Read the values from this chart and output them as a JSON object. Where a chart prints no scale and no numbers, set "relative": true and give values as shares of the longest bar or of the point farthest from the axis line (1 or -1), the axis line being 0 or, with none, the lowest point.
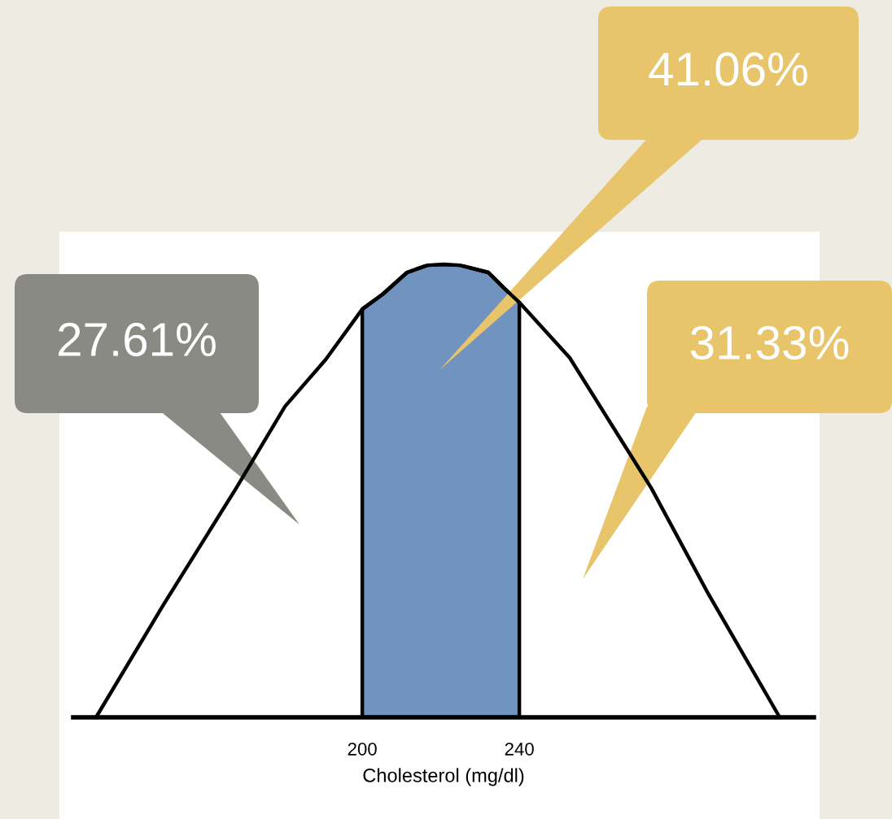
{
  "chart_data": {
    "type": "line",
    "relative": true,
    "xlabel": "Cholesterol (mg/dl)",
    "x": [
      132.2,
      149.2,
      167.9,
      180.3,
      190.7,
      200,
      205.2,
      211.4,
      216.6,
      220.7,
      224.9,
      232.1,
      236.3,
      240,
      252.8,
      263.2,
      273.6,
      288.1,
      306.3
    ],
    "series": [
      {
        "color": "#000000",
        "values": [
          0,
          0.246,
          0.506,
          0.686,
          0.79,
          0.901,
          0.934,
          0.982,
          0.998,
          1,
          0.998,
          0.982,
          0.946,
          0.916,
          0.794,
          0.65,
          0.506,
          0.273,
          0
        ]
      },
      {
        "type": "area",
        "color": "#7093bf",
        "x": [
          200,
          205.2,
          211.4,
          216.6,
          220.7,
          224.9,
          232.1,
          236.3,
          240
        ],
        "values": [
          0.901,
          0.934,
          0.982,
          0.998,
          1,
          0.998,
          0.982,
          0.946,
          0.916
        ]
      }
    ],
    "xlim": [
      126.4,
      315.0
    ],
    "xticks": [
      200,
      240
    ],
    "annotations": [
      "27.61%",
      "41.06%",
      "31.33%"
    ],
    "grid": false
  }
}
